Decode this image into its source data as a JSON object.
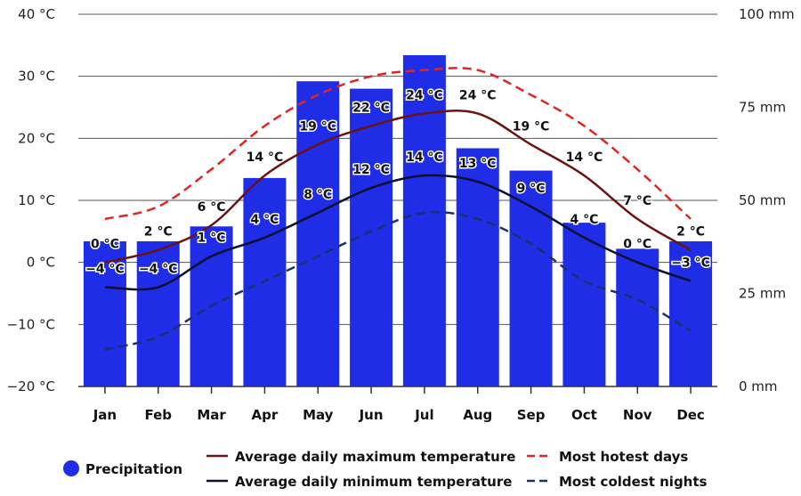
{
  "chart_data": {
    "type": "bar",
    "categories": [
      "Jan",
      "Feb",
      "Mar",
      "Apr",
      "May",
      "Jun",
      "Jul",
      "Aug",
      "Sep",
      "Oct",
      "Nov",
      "Dec"
    ],
    "left_axis": {
      "ylim": [
        -20,
        40
      ],
      "ticks": [
        40,
        30,
        20,
        10,
        0,
        -10,
        -20
      ],
      "tick_labels": [
        "40 °C",
        "30 °C",
        "20 °C",
        "10 °C",
        "0 °C",
        "−10 °C",
        "−20 °C"
      ]
    },
    "right_axis": {
      "ylim": [
        0,
        100
      ],
      "ticks": [
        100,
        75,
        50,
        25,
        0
      ],
      "tick_labels": [
        "100 mm",
        "75 mm",
        "50 mm",
        "25 mm",
        "0 mm"
      ]
    },
    "grid": true,
    "series": [
      {
        "name": "Precipitation",
        "kind": "bar",
        "axis": "right",
        "color": "#1f2ee6",
        "values": [
          39,
          39,
          43,
          56,
          82,
          80,
          89,
          64,
          58,
          44,
          37,
          39
        ]
      },
      {
        "name": "Average daily maximum temperature",
        "kind": "line",
        "axis": "left",
        "color": "#6b1212",
        "dash": "solid",
        "values": [
          0,
          2,
          6,
          14,
          19,
          22,
          24,
          24,
          19,
          14,
          7,
          2
        ],
        "labels": [
          "0 °C",
          "2 °C",
          "6 °C",
          "14 °C",
          "19 °C",
          "22 °C",
          "24 °C",
          "24 °C",
          "19 °C",
          "14 °C",
          "7 °C",
          "2 °C"
        ]
      },
      {
        "name": "Average daily minimum temperature",
        "kind": "line",
        "axis": "left",
        "color": "#0a0f2e",
        "dash": "solid",
        "values": [
          -4,
          -4,
          1,
          4,
          8,
          12,
          14,
          13,
          9,
          4,
          0,
          -3
        ],
        "labels": [
          "−4 °C",
          "−4 °C",
          "1 °C",
          "4 °C",
          "8 °C",
          "12 °C",
          "14 °C",
          "13 °C",
          "9 °C",
          "4 °C",
          "0 °C",
          "−3 °C"
        ]
      },
      {
        "name": "Most hotest days",
        "kind": "line",
        "axis": "left",
        "color": "#e02424",
        "dash": "dashed",
        "values": [
          7,
          9,
          15,
          22,
          27,
          30,
          31,
          31,
          27,
          22,
          15,
          7
        ]
      },
      {
        "name": "Most coldest nights",
        "kind": "line",
        "axis": "left",
        "color": "#1c2f6e",
        "dash": "dashed",
        "values": [
          -14,
          -12,
          -7,
          -3,
          1,
          5,
          8,
          7,
          3,
          -3,
          -6,
          -11
        ]
      }
    ],
    "legend": {
      "placement": "bottom",
      "entries": [
        "Precipitation",
        "Average daily maximum temperature",
        "Average daily minimum temperature",
        "Most hotest days",
        "Most coldest nights"
      ]
    }
  }
}
